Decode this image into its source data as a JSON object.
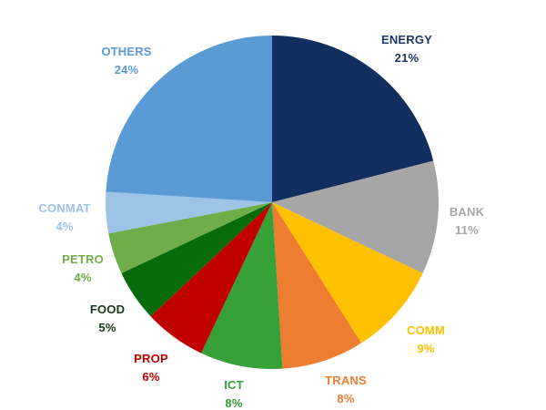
{
  "chart_data": {
    "type": "pie",
    "title": "",
    "legend": "none",
    "start_angle_deg": 0,
    "direction": "clockwise",
    "data_labels": "category name and percentage, outside end",
    "categories": [
      "ENERGY",
      "BANK",
      "COMM",
      "TRANS",
      "ICT",
      "PROP",
      "FOOD",
      "PETRO",
      "CONMAT",
      "OTHERS"
    ],
    "values": [
      21,
      11,
      9,
      8,
      8,
      6,
      5,
      4,
      4,
      24
    ],
    "labels_pct": [
      "21%",
      "11%",
      "9%",
      "8%",
      "8%",
      "6%",
      "5%",
      "4%",
      "4%",
      "24%"
    ],
    "colors": [
      "#122E5F",
      "#A6A6A6",
      "#FFC000",
      "#ED7D31",
      "#38A038",
      "#C00000",
      "#076B0C",
      "#6FAC4A",
      "#9DC3E6",
      "#5B9BD5"
    ],
    "label_colors": [
      "#1F3864",
      "#A6A6A6",
      "#FFC000",
      "#ED7D31",
      "#2FA037",
      "#C00000",
      "#153915",
      "#70AD47",
      "#9DC3E6",
      "#5B9BD5"
    ]
  }
}
